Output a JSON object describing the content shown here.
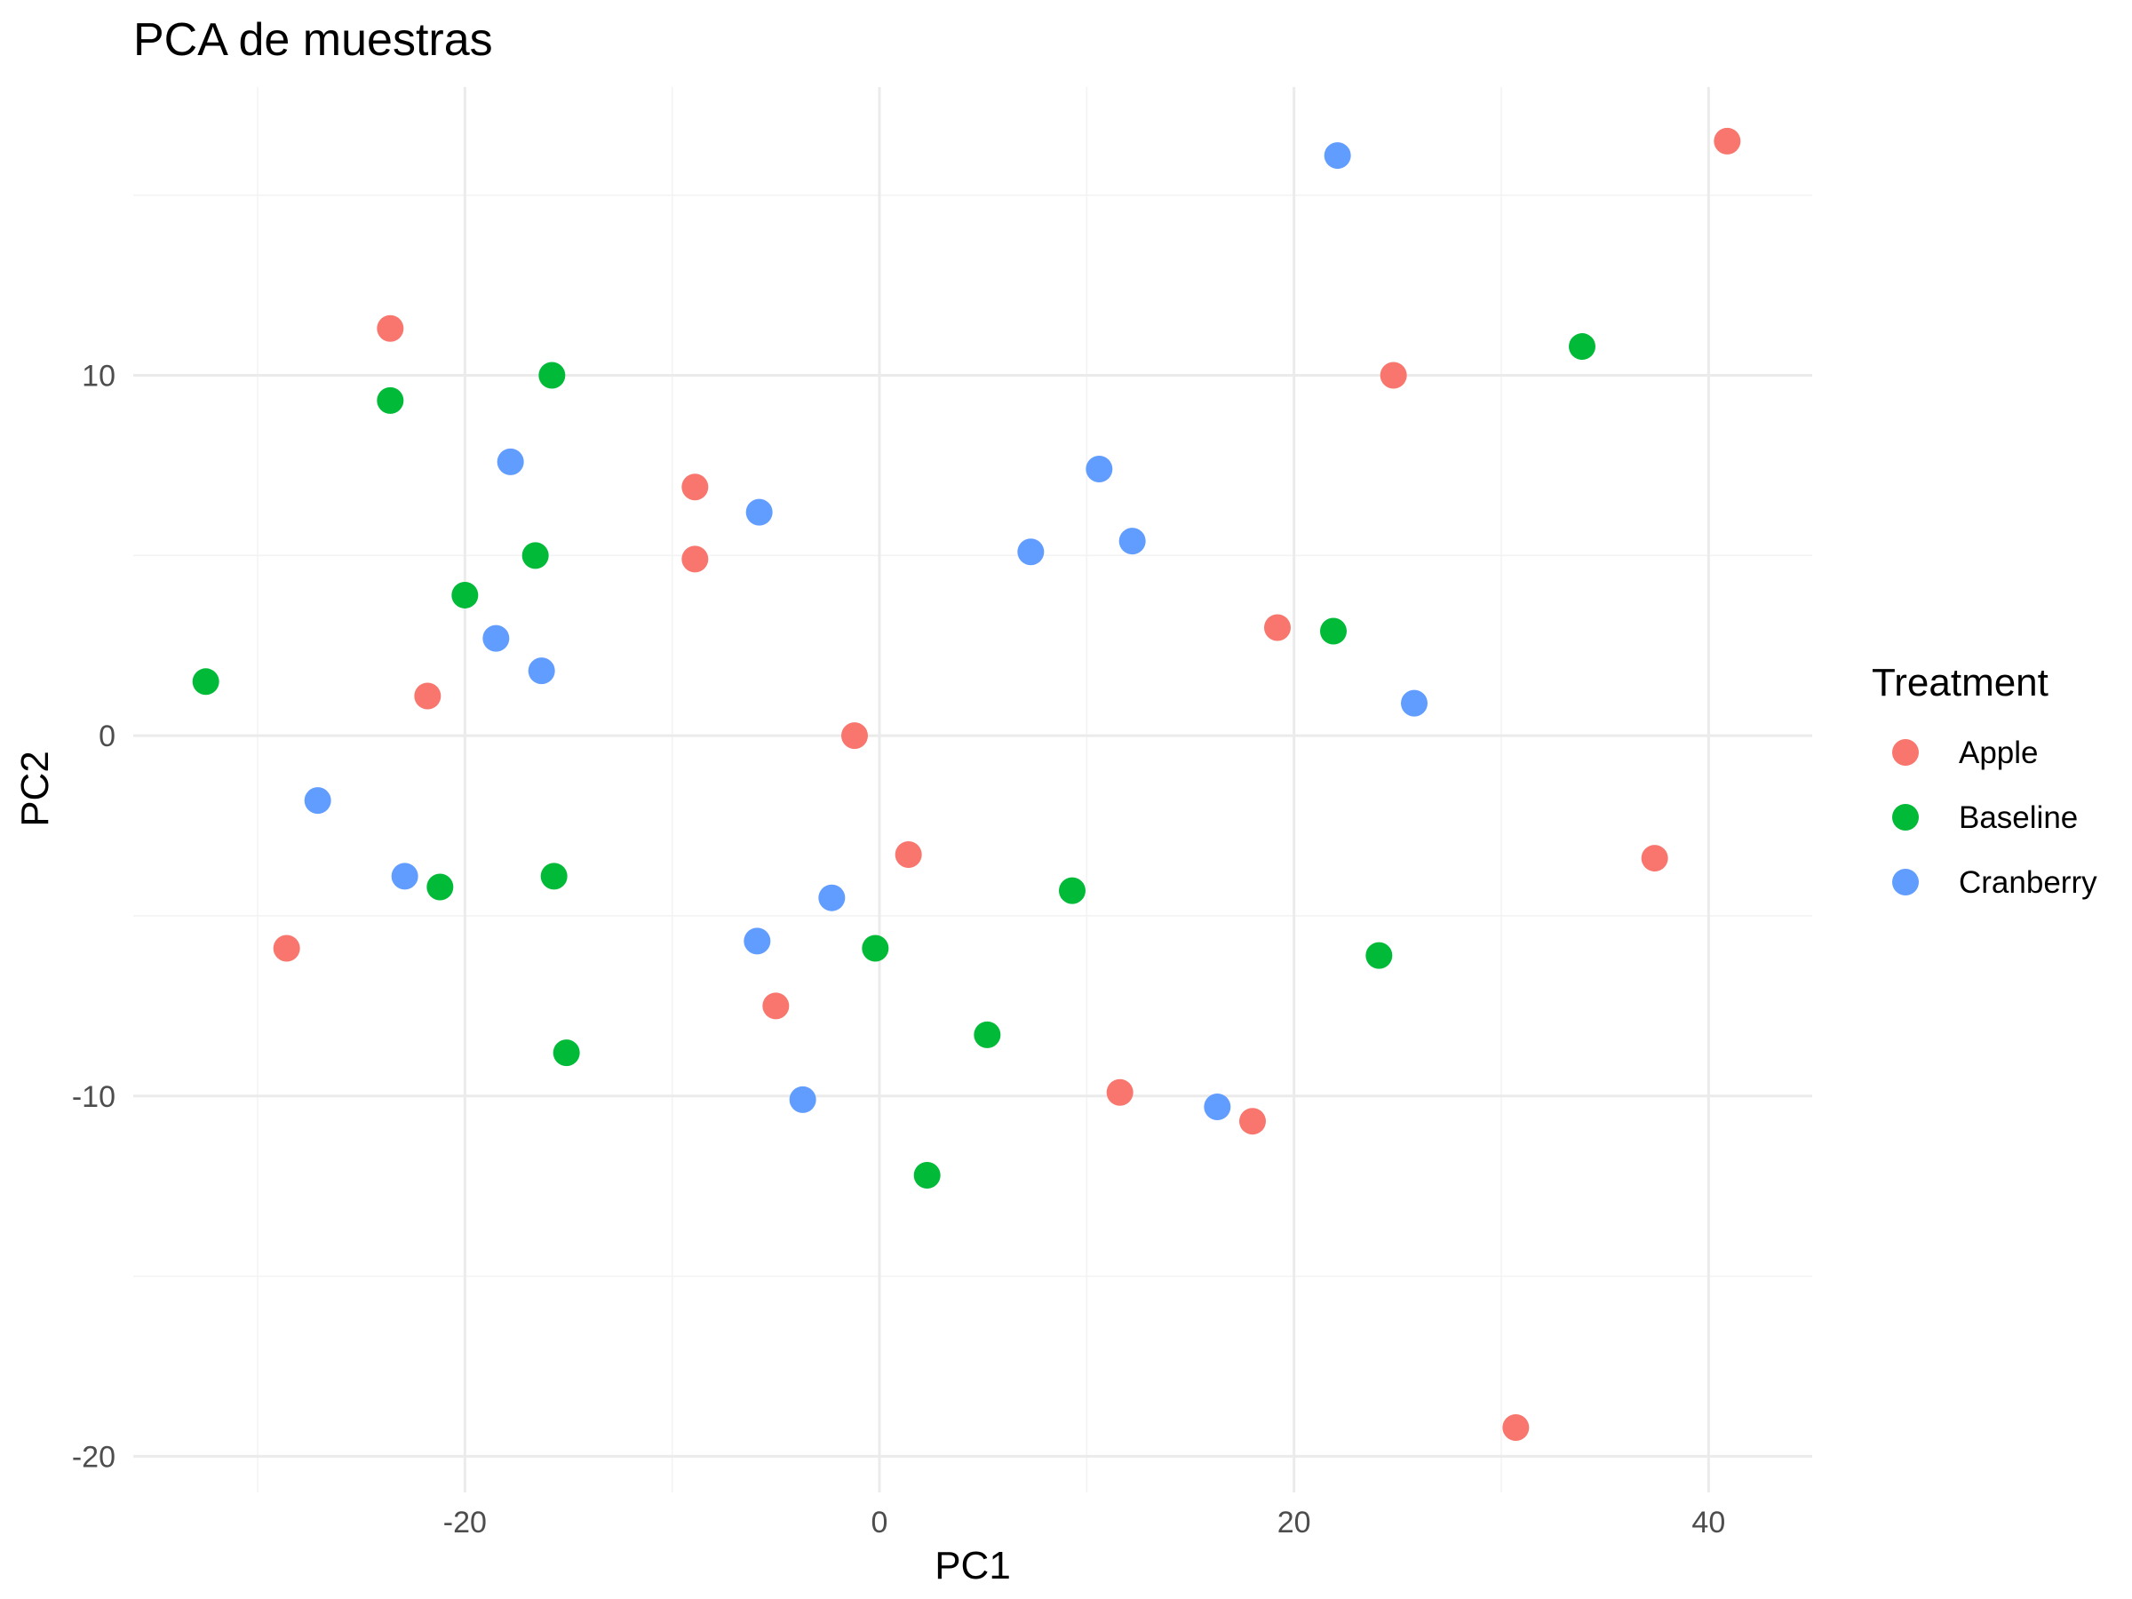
{
  "chart_data": {
    "type": "scatter",
    "title": "PCA de muestras",
    "xlabel": "PC1",
    "ylabel": "PC2",
    "xlim": [
      -36,
      45
    ],
    "ylim": [
      -21,
      18
    ],
    "x_ticks": [
      -20,
      0,
      20,
      40
    ],
    "y_ticks": [
      -20,
      -10,
      0,
      10
    ],
    "grid": true,
    "legend": {
      "title": "Treatment",
      "position": "right"
    },
    "series": [
      {
        "name": "Apple",
        "color": "#F8766D",
        "points": [
          [
            -23.6,
            11.3
          ],
          [
            -21.8,
            1.1
          ],
          [
            -28.6,
            -5.9
          ],
          [
            -8.9,
            6.9
          ],
          [
            -8.9,
            4.9
          ],
          [
            -1.2,
            0.0
          ],
          [
            1.4,
            -3.3
          ],
          [
            -5.0,
            -7.5
          ],
          [
            11.6,
            -9.9
          ],
          [
            18.0,
            -10.7
          ],
          [
            19.2,
            3.0
          ],
          [
            24.8,
            10.0
          ],
          [
            37.4,
            -3.4
          ],
          [
            40.9,
            16.5
          ],
          [
            30.7,
            -19.2
          ]
        ]
      },
      {
        "name": "Baseline",
        "color": "#00BA38",
        "points": [
          [
            -32.5,
            1.5
          ],
          [
            -23.6,
            9.3
          ],
          [
            -15.8,
            10.0
          ],
          [
            -16.6,
            5.0
          ],
          [
            -20.0,
            3.9
          ],
          [
            -21.2,
            -4.2
          ],
          [
            -15.7,
            -3.9
          ],
          [
            -15.1,
            -8.8
          ],
          [
            -0.2,
            -5.9
          ],
          [
            5.2,
            -8.3
          ],
          [
            2.3,
            -12.2
          ],
          [
            9.3,
            -4.3
          ],
          [
            21.9,
            2.9
          ],
          [
            24.1,
            -6.1
          ],
          [
            33.9,
            10.8
          ]
        ]
      },
      {
        "name": "Cranberry",
        "color": "#619CFF",
        "points": [
          [
            -27.1,
            -1.8
          ],
          [
            -22.9,
            -3.9
          ],
          [
            -17.8,
            7.6
          ],
          [
            -18.5,
            2.7
          ],
          [
            -16.3,
            1.8
          ],
          [
            -5.8,
            6.2
          ],
          [
            -5.9,
            -5.7
          ],
          [
            -2.3,
            -4.5
          ],
          [
            -3.7,
            -10.1
          ],
          [
            7.3,
            5.1
          ],
          [
            10.6,
            7.4
          ],
          [
            12.2,
            5.4
          ],
          [
            16.3,
            -10.3
          ],
          [
            22.1,
            16.1
          ],
          [
            25.8,
            0.9
          ]
        ]
      }
    ]
  }
}
